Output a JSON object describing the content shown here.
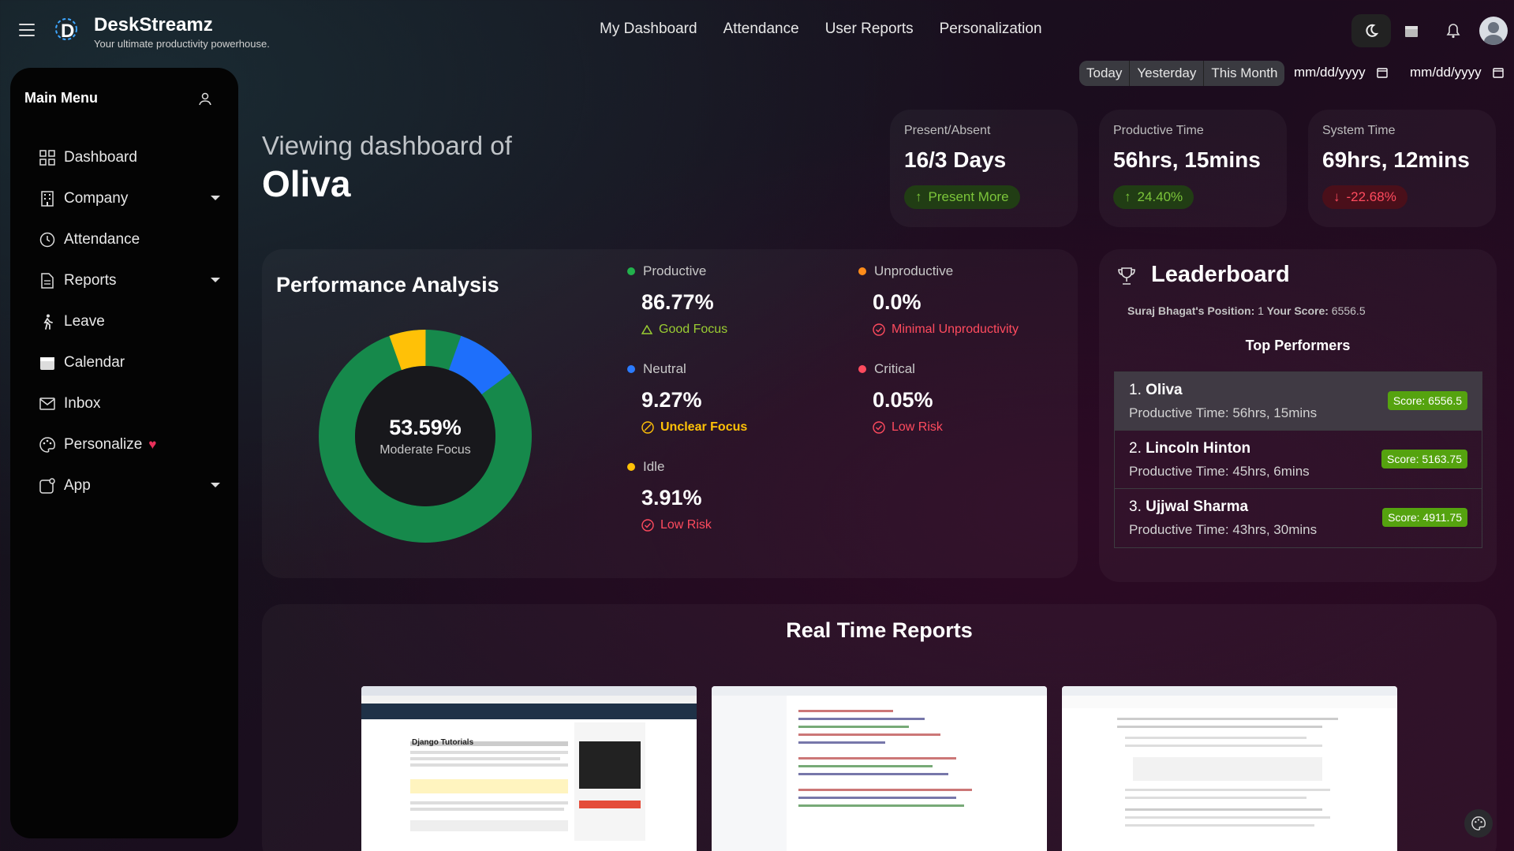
{
  "brand": {
    "name": "DeskStreamz",
    "tagline": "Your ultimate productivity powerhouse."
  },
  "topnav": [
    "My Dashboard",
    "Attendance",
    "User Reports",
    "Personalization"
  ],
  "header_icons": [
    "moon-icon",
    "calendar-icon",
    "bell-icon",
    "avatar"
  ],
  "date_filter": {
    "ranges": [
      "Today",
      "Yesterday",
      "This Month"
    ],
    "from_placeholder": "mm/dd/yyyy",
    "to_placeholder": "mm/dd/yyyy"
  },
  "sidebar": {
    "title": "Main Menu",
    "items": [
      {
        "label": "Dashboard",
        "icon": "grid-icon",
        "has_submenu": false
      },
      {
        "label": "Company",
        "icon": "building-icon",
        "has_submenu": true
      },
      {
        "label": "Attendance",
        "icon": "clock-icon",
        "has_submenu": false
      },
      {
        "label": "Reports",
        "icon": "document-icon",
        "has_submenu": true
      },
      {
        "label": "Leave",
        "icon": "walking-icon",
        "has_submenu": false
      },
      {
        "label": "Calendar",
        "icon": "calendar-icon",
        "has_submenu": false
      },
      {
        "label": "Inbox",
        "icon": "envelope-icon",
        "has_submenu": false
      },
      {
        "label": "Personalize",
        "icon": "palette-icon",
        "has_submenu": false
      },
      {
        "label": "App",
        "icon": "app-icon",
        "has_submenu": true
      }
    ]
  },
  "viewing": {
    "label": "Viewing dashboard of",
    "name": "Oliva"
  },
  "stats": [
    {
      "label": "Present/Absent",
      "value": "16/3 Days",
      "badge": "Present More",
      "trend": "up",
      "color": "#7cc53a"
    },
    {
      "label": "Productive Time",
      "value": "56hrs, 15mins",
      "badge": "24.40%",
      "trend": "up",
      "color": "#7cc53a"
    },
    {
      "label": "System Time",
      "value": "69hrs, 12mins",
      "badge": "-22.68%",
      "trend": "down",
      "color": "#ff4b5e"
    }
  ],
  "performance": {
    "title": "Performance Analysis",
    "center_value": "53.59%",
    "center_label": "Moderate Focus",
    "metrics": [
      {
        "label": "Productive",
        "value": "86.77%",
        "note": "Good Focus",
        "dot": "#22b14c",
        "note_color": "#9acd32",
        "note_icon": "triangle-up-icon"
      },
      {
        "label": "Unproductive",
        "value": "0.0%",
        "note": "Minimal Unproductivity",
        "dot": "#ff8c1a",
        "note_color": "#ff4b5e",
        "note_icon": "check-circle-icon"
      },
      {
        "label": "Neutral",
        "value": "9.27%",
        "note": "Unclear Focus",
        "dot": "#2b7bff",
        "note_color": "#ffc107",
        "note_icon": "slash-circle-icon"
      },
      {
        "label": "Critical",
        "value": "0.05%",
        "note": "Low Risk",
        "dot": "#ff4b5e",
        "note_color": "#ff4b5e",
        "note_icon": "check-circle-icon"
      },
      {
        "label": "Idle",
        "value": "3.91%",
        "note": "Low Risk",
        "dot": "#ffc107",
        "note_color": "#ff4b5e",
        "note_icon": "check-circle-icon"
      }
    ],
    "colors": {
      "productive": "#16894b",
      "neutral": "#1e6ffb",
      "idle": "#ffc107"
    }
  },
  "leaderboard": {
    "title": "Leaderboard",
    "position_label": "Suraj Bhagat's Position:",
    "position_value": "1",
    "score_label": "Your Score:",
    "score_value": "6556.5",
    "top_label": "Top Performers",
    "rows": [
      {
        "rank": "1.",
        "name": "Oliva",
        "ptime": "Productive Time: 56hrs, 15mins",
        "score": "Score: 6556.5"
      },
      {
        "rank": "2.",
        "name": "Lincoln Hinton",
        "ptime": "Productive Time: 45hrs, 6mins",
        "score": "Score: 5163.75"
      },
      {
        "rank": "3.",
        "name": "Ujjwal Sharma",
        "ptime": "Productive Time: 43hrs, 30mins",
        "score": "Score: 4911.75"
      }
    ]
  },
  "realtime": {
    "title": "Real Time Reports",
    "thumb_texts": {
      "thumb1": "Django Tutorials"
    }
  }
}
